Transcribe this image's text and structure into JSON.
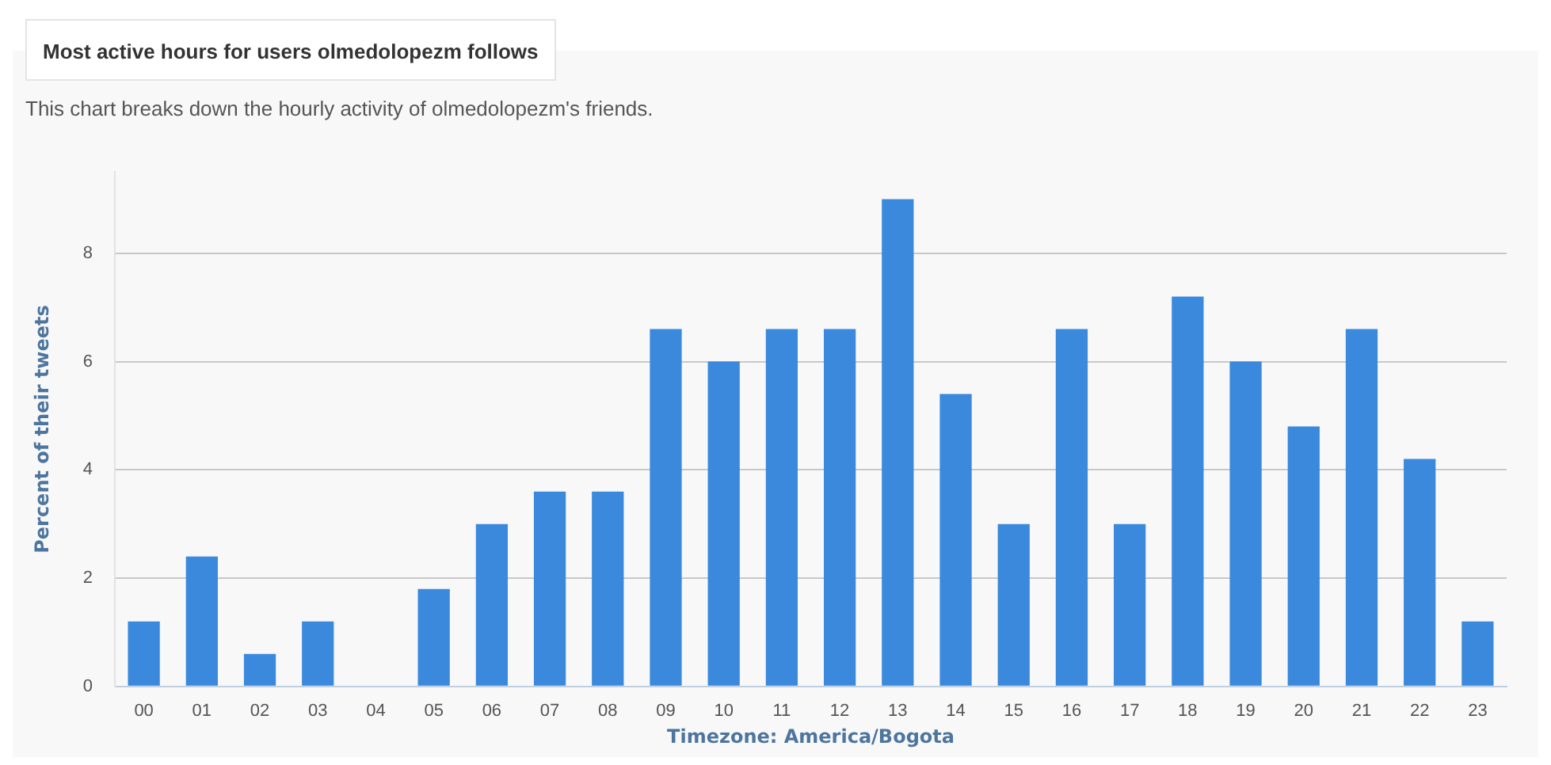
{
  "chart_data": {
    "type": "bar",
    "title": "Most active hours for users olmedolopezm follows",
    "subtitle": "This chart breaks down the hourly activity of olmedolopezm's friends.",
    "xlabel": "Timezone: America/Bogota",
    "ylabel": "Percent of their tweets",
    "categories": [
      "00",
      "01",
      "02",
      "03",
      "04",
      "05",
      "06",
      "07",
      "08",
      "09",
      "10",
      "11",
      "12",
      "13",
      "14",
      "15",
      "16",
      "17",
      "18",
      "19",
      "20",
      "21",
      "22",
      "23"
    ],
    "values": [
      1.2,
      2.4,
      0.6,
      1.2,
      0,
      1.8,
      3.0,
      3.6,
      3.6,
      6.6,
      6.0,
      6.6,
      6.6,
      9.0,
      5.4,
      3.0,
      6.6,
      3.0,
      7.2,
      6.0,
      4.8,
      6.6,
      4.2,
      1.2
    ],
    "color": "#3a89dd",
    "ylim": [
      0,
      9.5
    ],
    "yticks": [
      0,
      2,
      4,
      6,
      8
    ],
    "grid": "y",
    "legend": false
  }
}
